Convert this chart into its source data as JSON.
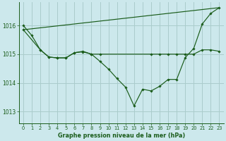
{
  "title": "Graphe pression niveau de la mer (hPa)",
  "bg_color": "#cce8ec",
  "grid_color": "#aacccc",
  "line_color": "#1a5c1a",
  "xlim": [
    -0.5,
    23.5
  ],
  "ylim": [
    1012.6,
    1016.8
  ],
  "yticks": [
    1013,
    1014,
    1015,
    1016
  ],
  "xticks": [
    0,
    1,
    2,
    3,
    4,
    5,
    6,
    7,
    8,
    9,
    10,
    11,
    12,
    13,
    14,
    15,
    16,
    17,
    18,
    19,
    20,
    21,
    22,
    23
  ],
  "series_main_x": [
    0,
    1,
    2,
    3,
    4,
    5,
    6,
    7,
    8,
    9,
    10,
    11,
    12,
    13,
    14,
    15,
    16,
    17,
    18,
    19,
    20,
    21,
    22,
    23
  ],
  "series_main_y": [
    1016.0,
    1015.65,
    1015.15,
    1014.9,
    1014.87,
    1014.87,
    1015.05,
    1015.1,
    1015.0,
    1014.75,
    1014.48,
    1014.15,
    1013.85,
    1013.2,
    1013.78,
    1013.72,
    1013.88,
    1014.12,
    1014.12,
    1014.88,
    1015.2,
    1016.05,
    1016.42,
    1016.62
  ],
  "series_flat_x": [
    0,
    2,
    3,
    4,
    5,
    6,
    7,
    8,
    9,
    15,
    16,
    17,
    18,
    19,
    20,
    21,
    22,
    23
  ],
  "series_flat_y": [
    1015.85,
    1015.15,
    1014.9,
    1014.87,
    1014.87,
    1015.05,
    1015.08,
    1015.0,
    1015.0,
    1015.0,
    1015.0,
    1015.0,
    1015.0,
    1015.0,
    1015.0,
    1015.15,
    1015.15,
    1015.1
  ],
  "series_trend_x": [
    0,
    23
  ],
  "series_trend_y": [
    1015.85,
    1016.62
  ]
}
